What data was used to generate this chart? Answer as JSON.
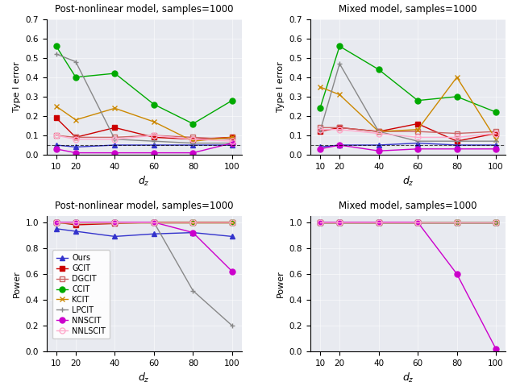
{
  "x": [
    10,
    20,
    40,
    60,
    80,
    100
  ],
  "titles": [
    "Post-nonlinear model, samples=1000",
    "Mixed model, samples=1000",
    "Post-nonlinear model, samples=1000",
    "Mixed model, samples=1000"
  ],
  "ylabels": [
    "Type I error",
    "Type I error",
    "Power",
    "Power"
  ],
  "xlabels": [
    "$d_z$",
    "$d_z$",
    "$d_z$",
    "$d_z$"
  ],
  "type1_ylim": [
    0.0,
    0.7
  ],
  "power_ylim": [
    0.0,
    1.05
  ],
  "type1_yticks": [
    0.0,
    0.1,
    0.2,
    0.3,
    0.4,
    0.5,
    0.6,
    0.7
  ],
  "power_yticks": [
    0.0,
    0.2,
    0.4,
    0.6,
    0.8,
    1.0
  ],
  "methods": [
    "Ours",
    "GCIT",
    "DGCIT",
    "CCIT",
    "KCIT",
    "LPCIT",
    "NNSCIT",
    "NNLSCIT"
  ],
  "colors": [
    "#3333cc",
    "#cc0000",
    "#cc6666",
    "#00aa00",
    "#cc8800",
    "#888888",
    "#cc00cc",
    "#ffaacc"
  ],
  "markers": [
    "^",
    "s",
    "s",
    "o",
    "x",
    "+",
    "o",
    "o"
  ],
  "fillstyles": [
    "full",
    "full",
    "none",
    "full",
    "none",
    "none",
    "full",
    "none"
  ],
  "type1_error_pnl": [
    [
      0.05,
      0.04,
      0.05,
      0.05,
      0.05,
      0.05
    ],
    [
      0.19,
      0.09,
      0.14,
      0.09,
      0.08,
      0.09
    ],
    [
      0.1,
      0.09,
      0.09,
      0.1,
      0.09,
      0.08
    ],
    [
      0.56,
      0.4,
      0.42,
      0.26,
      0.16,
      0.28
    ],
    [
      0.25,
      0.18,
      0.24,
      0.17,
      0.07,
      0.09
    ],
    [
      0.52,
      0.48,
      0.08,
      0.07,
      0.06,
      0.06
    ],
    [
      0.03,
      0.01,
      0.01,
      0.01,
      0.01,
      0.06
    ],
    [
      0.1,
      0.08,
      0.08,
      0.1,
      0.08,
      0.07
    ]
  ],
  "type1_error_mixed": [
    [
      0.04,
      0.05,
      0.05,
      0.06,
      0.05,
      0.05
    ],
    [
      0.12,
      0.14,
      0.12,
      0.16,
      0.07,
      0.11
    ],
    [
      0.14,
      0.14,
      0.12,
      0.12,
      0.11,
      0.12
    ],
    [
      0.24,
      0.56,
      0.44,
      0.28,
      0.3,
      0.22
    ],
    [
      0.35,
      0.31,
      0.12,
      0.13,
      0.4,
      0.08
    ],
    [
      0.12,
      0.47,
      0.12,
      0.07,
      0.07,
      0.07
    ],
    [
      0.03,
      0.05,
      0.02,
      0.03,
      0.03,
      0.03
    ],
    [
      0.13,
      0.13,
      0.11,
      0.09,
      0.09,
      0.11
    ]
  ],
  "power_pnl": [
    [
      0.95,
      0.93,
      0.89,
      0.91,
      0.92,
      0.89
    ],
    [
      1.0,
      0.98,
      0.99,
      1.0,
      1.0,
      1.0
    ],
    [
      1.0,
      1.0,
      1.0,
      1.0,
      1.0,
      1.0
    ],
    [
      1.0,
      1.0,
      1.0,
      1.0,
      1.0,
      1.0
    ],
    [
      1.0,
      1.0,
      1.0,
      1.0,
      1.0,
      1.0
    ],
    [
      1.0,
      1.0,
      1.0,
      1.0,
      0.47,
      0.2
    ],
    [
      1.0,
      1.0,
      1.0,
      1.0,
      0.92,
      0.62
    ],
    [
      1.0,
      1.0,
      1.0,
      1.0,
      1.0,
      1.0
    ]
  ],
  "power_mixed": [
    [
      1.0,
      1.0,
      1.0,
      1.0,
      1.0,
      1.0
    ],
    [
      1.0,
      1.0,
      1.0,
      1.0,
      1.0,
      1.0
    ],
    [
      1.0,
      1.0,
      1.0,
      1.0,
      1.0,
      1.0
    ],
    [
      1.0,
      1.0,
      1.0,
      1.0,
      1.0,
      1.0
    ],
    [
      1.0,
      1.0,
      1.0,
      1.0,
      1.0,
      1.0
    ],
    [
      1.0,
      1.0,
      1.0,
      1.0,
      1.0,
      1.0
    ],
    [
      1.0,
      1.0,
      1.0,
      1.0,
      0.6,
      0.02
    ],
    [
      1.0,
      1.0,
      1.0,
      1.0,
      1.0,
      1.0
    ]
  ],
  "alpha_line": 0.05,
  "bg_color": "#e8eaf0"
}
